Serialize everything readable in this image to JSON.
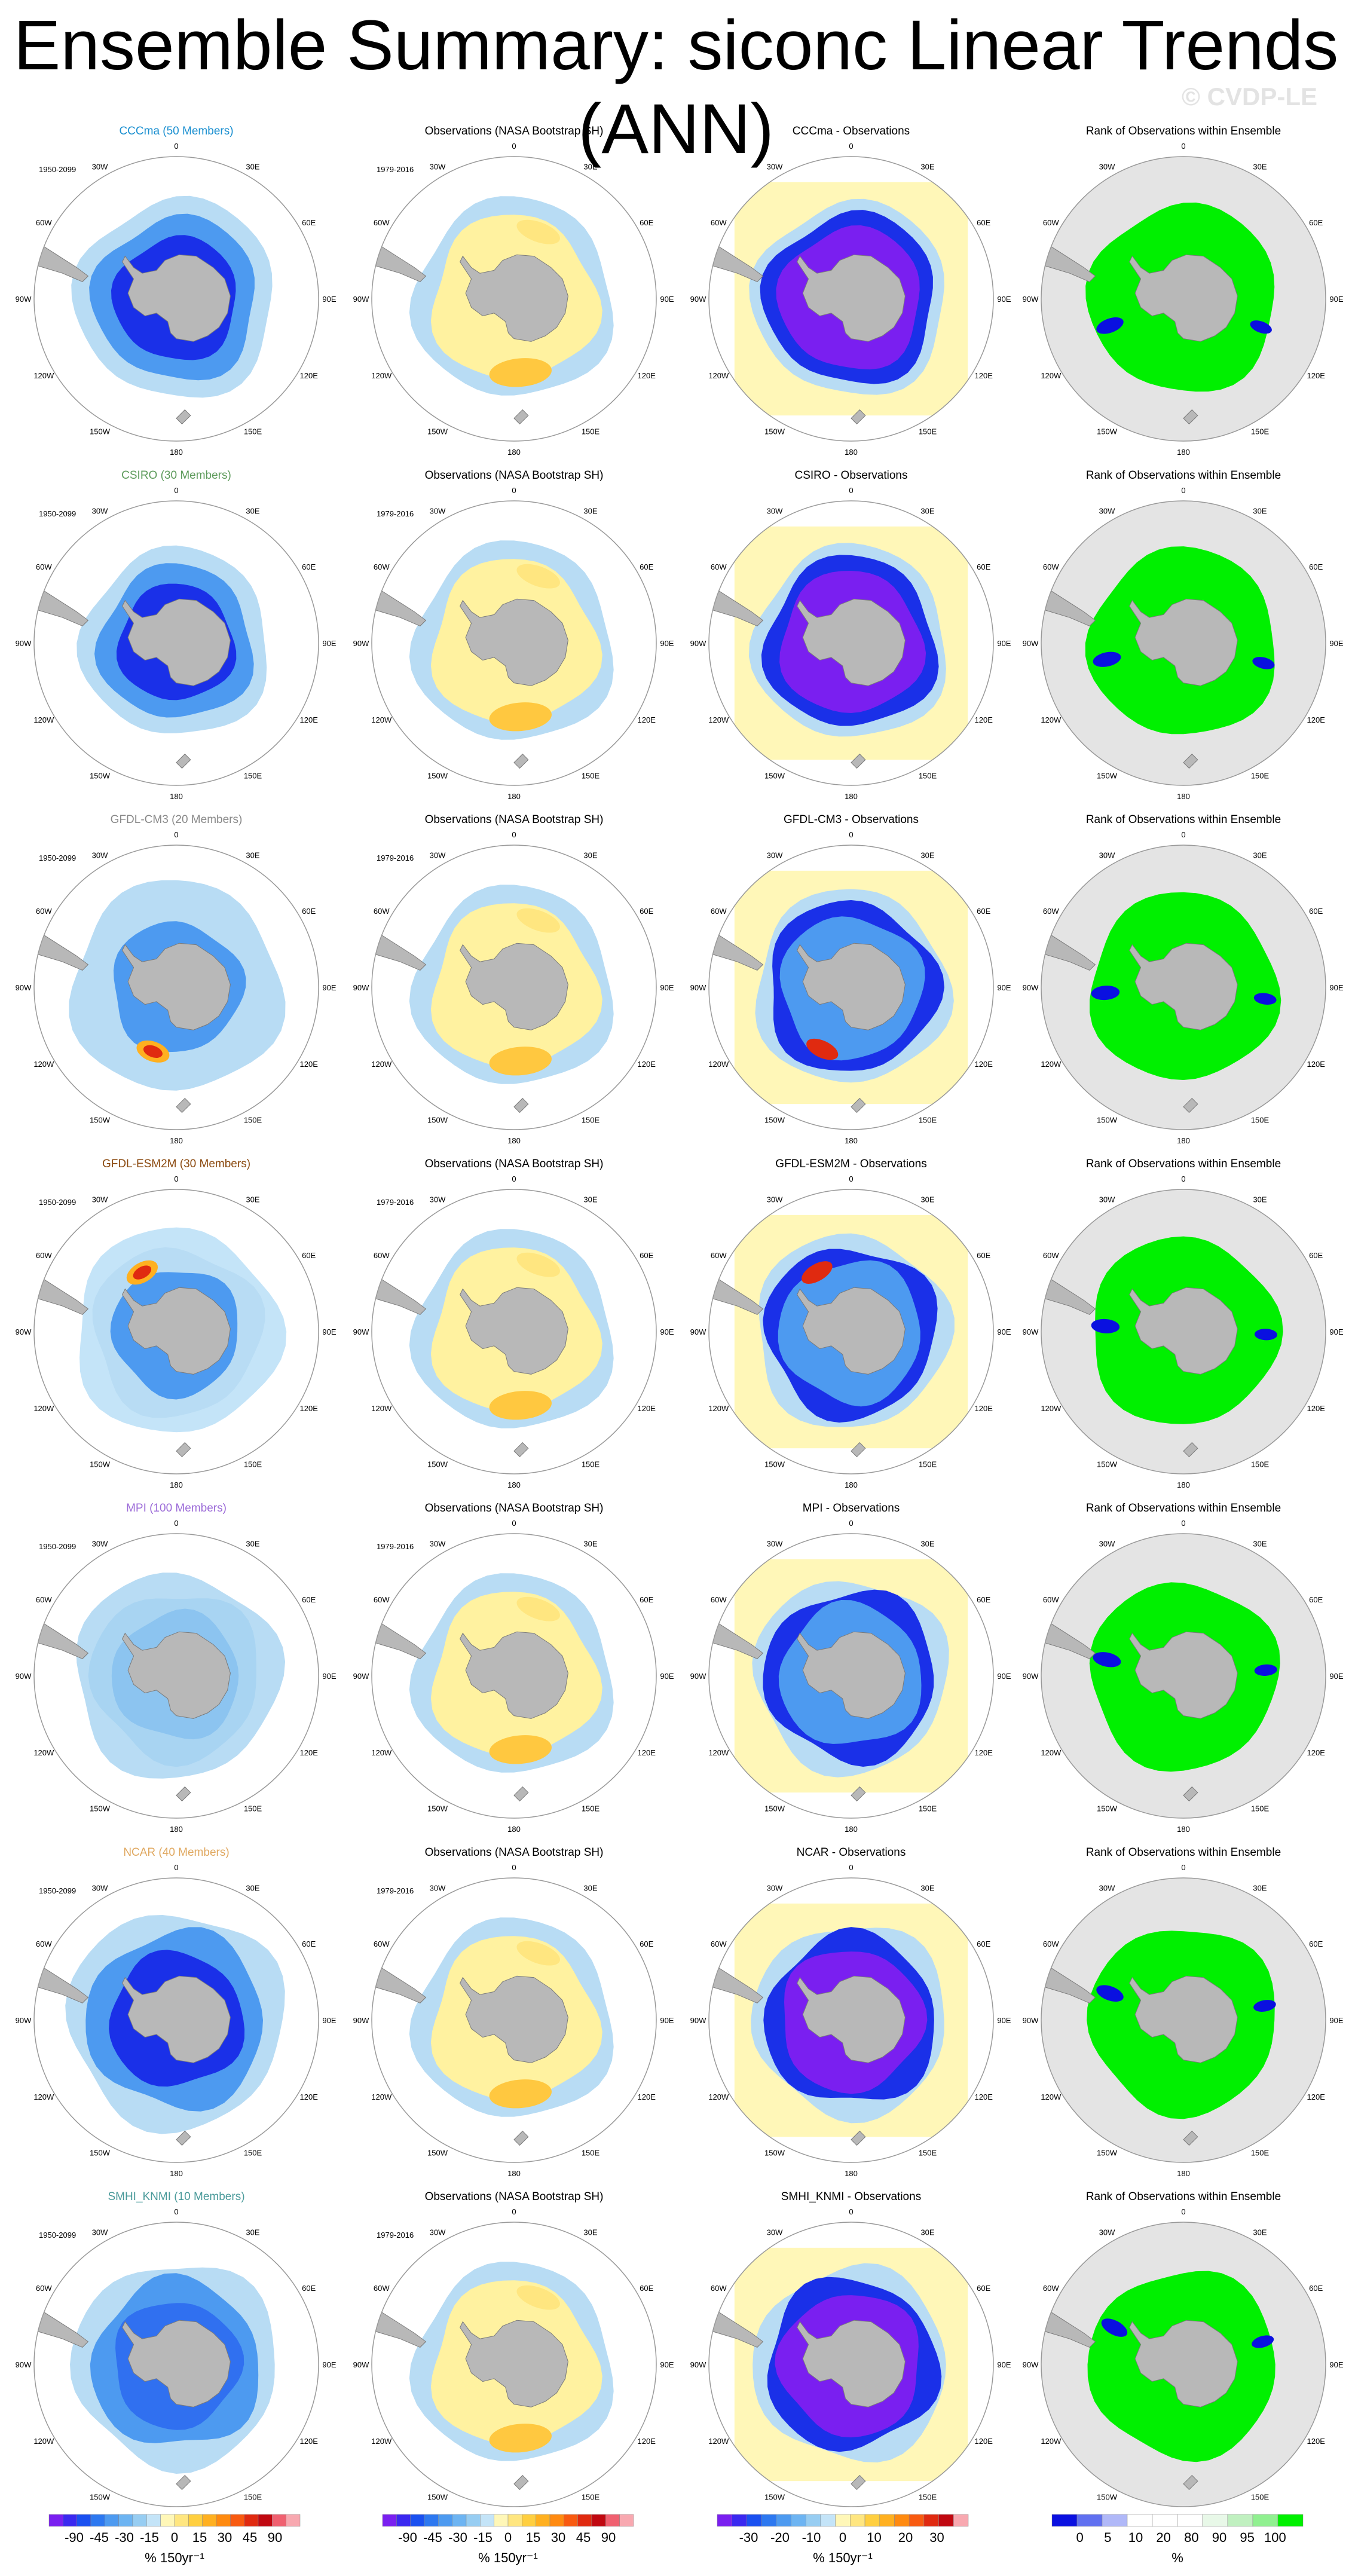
{
  "title": "Ensemble Summary: siconc Linear Trends (ANN)",
  "watermark": "© CVDP-LE",
  "column_titles": {
    "observations": "Observations (NASA Bootstrap SH)",
    "rank": "Rank of Observations within Ensemble"
  },
  "model_period": "1950-2099",
  "obs_period": "1979-2016",
  "longitude_labels": [
    "0",
    "30E",
    "60E",
    "90E",
    "120E",
    "150E",
    "180",
    "150W",
    "120W",
    "90W",
    "60W",
    "30W"
  ],
  "rows": [
    {
      "model_title": "CCCma (50 Members)",
      "title_color": "#1a8fd0",
      "diff_title": "CCCma - Observations"
    },
    {
      "model_title": "CSIRO (30 Members)",
      "title_color": "#5c9a5a",
      "diff_title": "CSIRO - Observations"
    },
    {
      "model_title": "GFDL-CM3 (20 Members)",
      "title_color": "#888888",
      "diff_title": "GFDL-CM3 - Observations"
    },
    {
      "model_title": "GFDL-ESM2M (30 Members)",
      "title_color": "#8b4a10",
      "diff_title": "GFDL-ESM2M - Observations"
    },
    {
      "model_title": "MPI (100 Members)",
      "title_color": "#9c6bd8",
      "diff_title": "MPI - Observations"
    },
    {
      "model_title": "NCAR (40 Members)",
      "title_color": "#e0a860",
      "diff_title": "NCAR - Observations"
    },
    {
      "model_title": "SMHI_KNMI (10 Members)",
      "title_color": "#4a9a9a",
      "diff_title": "SMHI_KNMI - Observations"
    }
  ],
  "colorbars": [
    {
      "ticks": [
        "-90",
        "-45",
        "-30",
        "-15",
        "0",
        "15",
        "30",
        "45",
        "90"
      ],
      "unit": "% 150yr⁻¹",
      "colors": [
        "#7a1ff0",
        "#3a28f0",
        "#1a50f0",
        "#2d78f0",
        "#4d9af0",
        "#6db4f2",
        "#97cdf2",
        "#c4e4f8",
        "#fff7b8",
        "#ffe680",
        "#ffcf40",
        "#ffb020",
        "#ff8a10",
        "#f85a10",
        "#e02a10",
        "#c00810",
        "#f06070",
        "#f8a8b0"
      ]
    },
    {
      "ticks": [
        "-90",
        "-45",
        "-30",
        "-15",
        "0",
        "15",
        "30",
        "45",
        "90"
      ],
      "unit": "% 150yr⁻¹",
      "colors": [
        "#7a1ff0",
        "#3a28f0",
        "#1a50f0",
        "#2d78f0",
        "#4d9af0",
        "#6db4f2",
        "#97cdf2",
        "#c4e4f8",
        "#fff7b8",
        "#ffe680",
        "#ffcf40",
        "#ffb020",
        "#ff8a10",
        "#f85a10",
        "#e02a10",
        "#c00810",
        "#f06070",
        "#f8a8b0"
      ]
    },
    {
      "ticks": [
        "-30",
        "-20",
        "-10",
        "0",
        "10",
        "20",
        "30"
      ],
      "unit": "% 150yr⁻¹",
      "colors": [
        "#7a1ff0",
        "#3a28f0",
        "#1a50f0",
        "#2d78f0",
        "#4d9af0",
        "#6db4f2",
        "#97cdf2",
        "#c4e4f8",
        "#fff7b8",
        "#ffe680",
        "#ffcf40",
        "#ffb020",
        "#ff8a10",
        "#f85a10",
        "#e02a10",
        "#c00810",
        "#f8a8b0"
      ]
    },
    {
      "ticks": [
        "0",
        "5",
        "10",
        "20",
        "80",
        "90",
        "95",
        "100"
      ],
      "unit": "%",
      "colors": [
        "#0a10e0",
        "#6070f0",
        "#b0b8f8",
        "#ffffff",
        "#ffffff",
        "#ffffff",
        "#e8f8e8",
        "#c0f0c0",
        "#90f090",
        "#00f000"
      ]
    }
  ],
  "map_colors": {
    "land": "#b8b8b8",
    "ring": "#999999",
    "rank_background": "#e4e4e4",
    "rank_green": "#00f000",
    "rank_blue": "#0a10e0",
    "obs_yellow": "#fff2a0",
    "obs_orange": "#ffc840",
    "pale_blue": "#b8dcf4",
    "mid_blue": "#4d9af0",
    "deep_blue": "#1a30e8",
    "purple": "#7a1ff0",
    "diff_yellow": "#fff7b8"
  },
  "chart_data": [
    {
      "type": "heatmap",
      "title": "Ensemble Summary: siconc Linear Trends (ANN)",
      "projection": "south polar stereographic",
      "layout": "7 rows x 4 columns",
      "columns": [
        "model ensemble mean trend",
        "Observations (NASA Bootstrap SH)",
        "model - Observations",
        "Rank of Observations within Ensemble"
      ],
      "rows": [
        "CCCma (50 Members)",
        "CSIRO (30 Members)",
        "GFDL-CM3 (20 Members)",
        "GFDL-ESM2M (30 Members)",
        "MPI (100 Members)",
        "NCAR (40 Members)",
        "SMHI_KNMI (10 Members)"
      ],
      "trend_unit": "% 150yr⁻¹",
      "trend_levels": [
        -90,
        -45,
        -30,
        -15,
        0,
        15,
        30,
        45,
        90
      ],
      "difference_levels": [
        -30,
        -20,
        -10,
        0,
        10,
        20,
        30
      ],
      "rank_levels": [
        0,
        5,
        10,
        20,
        80,
        90,
        95,
        100
      ],
      "rank_unit": "%"
    }
  ]
}
